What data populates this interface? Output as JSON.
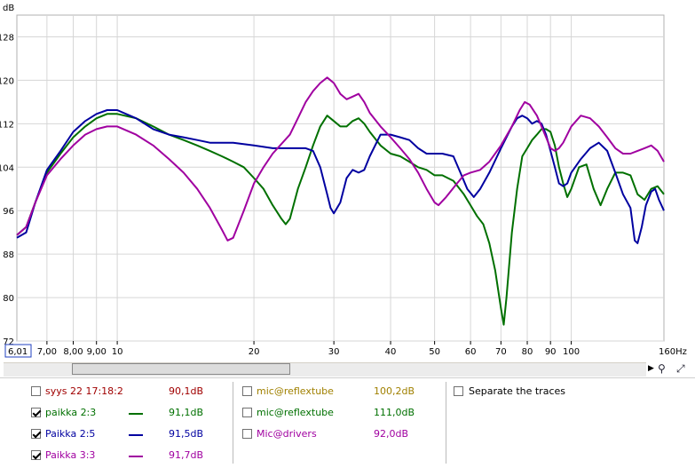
{
  "chart_data": {
    "type": "line",
    "ylabel": "dB",
    "xunit": "Hz",
    "xscale": "log",
    "xlim": [
      6.01,
      160
    ],
    "ylim": [
      72,
      132
    ],
    "xcursor_label": "6,01",
    "xticks": [
      {
        "v": 7,
        "label": "7,00"
      },
      {
        "v": 8,
        "label": "8,00"
      },
      {
        "v": 9,
        "label": "9,00"
      },
      {
        "v": 10,
        "label": "10"
      },
      {
        "v": 20,
        "label": "20"
      },
      {
        "v": 30,
        "label": "30"
      },
      {
        "v": 40,
        "label": "40"
      },
      {
        "v": 50,
        "label": "50"
      },
      {
        "v": 60,
        "label": "60"
      },
      {
        "v": 70,
        "label": "70"
      },
      {
        "v": 80,
        "label": "80"
      },
      {
        "v": 90,
        "label": "90"
      },
      {
        "v": 100,
        "label": "100"
      }
    ],
    "xend_label": "160Hz",
    "yticks": [
      72,
      80,
      88,
      96,
      104,
      112,
      120,
      128
    ],
    "grid": true,
    "series": [
      {
        "name": "paikka 2:3",
        "color": "#007000",
        "points": [
          [
            6.01,
            91.5
          ],
          [
            6.3,
            93
          ],
          [
            6.6,
            97.5
          ],
          [
            7,
            103
          ],
          [
            7.5,
            106.5
          ],
          [
            8,
            109.5
          ],
          [
            8.5,
            111.5
          ],
          [
            9,
            113
          ],
          [
            9.5,
            113.8
          ],
          [
            10,
            113.8
          ],
          [
            11,
            113
          ],
          [
            12,
            111.5
          ],
          [
            13,
            110
          ],
          [
            14,
            109
          ],
          [
            15,
            108
          ],
          [
            16,
            107
          ],
          [
            17,
            106
          ],
          [
            18,
            105
          ],
          [
            19,
            104
          ],
          [
            20,
            102
          ],
          [
            21,
            100
          ],
          [
            22,
            97
          ],
          [
            23,
            94.5
          ],
          [
            23.5,
            93.5
          ],
          [
            24,
            94.5
          ],
          [
            25,
            100
          ],
          [
            26,
            104
          ],
          [
            27,
            108
          ],
          [
            28,
            111.5
          ],
          [
            29,
            113.5
          ],
          [
            30,
            112.5
          ],
          [
            31,
            111.5
          ],
          [
            32,
            111.5
          ],
          [
            33,
            112.5
          ],
          [
            34,
            113
          ],
          [
            35,
            112
          ],
          [
            36,
            110.5
          ],
          [
            38,
            108
          ],
          [
            40,
            106.5
          ],
          [
            42,
            106
          ],
          [
            44,
            105
          ],
          [
            46,
            104
          ],
          [
            48,
            103.5
          ],
          [
            50,
            102.5
          ],
          [
            52,
            102.5
          ],
          [
            55,
            101.5
          ],
          [
            58,
            99
          ],
          [
            60,
            97
          ],
          [
            62,
            95
          ],
          [
            64,
            93.5
          ],
          [
            66,
            90
          ],
          [
            68,
            85
          ],
          [
            70,
            78
          ],
          [
            71,
            75
          ],
          [
            72,
            80
          ],
          [
            74,
            92
          ],
          [
            76,
            100
          ],
          [
            78,
            106
          ],
          [
            80,
            107.5
          ],
          [
            82,
            109
          ],
          [
            84,
            110
          ],
          [
            86,
            111
          ],
          [
            88,
            111
          ],
          [
            90,
            110.5
          ],
          [
            92,
            108
          ],
          [
            94,
            104
          ],
          [
            96,
            101
          ],
          [
            98,
            98.5
          ],
          [
            100,
            100
          ],
          [
            104,
            104
          ],
          [
            108,
            104.5
          ],
          [
            112,
            100
          ],
          [
            116,
            97
          ],
          [
            120,
            100
          ],
          [
            125,
            103
          ],
          [
            130,
            103
          ],
          [
            135,
            102.5
          ],
          [
            140,
            99
          ],
          [
            145,
            98
          ],
          [
            150,
            100
          ],
          [
            155,
            100.5
          ],
          [
            160,
            99
          ]
        ]
      },
      {
        "name": "Paikka 2:5",
        "color": "#0000a0",
        "points": [
          [
            6.01,
            91
          ],
          [
            6.3,
            92
          ],
          [
            6.6,
            97.5
          ],
          [
            7,
            103.5
          ],
          [
            7.5,
            107
          ],
          [
            8,
            110.5
          ],
          [
            8.5,
            112.5
          ],
          [
            9,
            113.8
          ],
          [
            9.5,
            114.5
          ],
          [
            10,
            114.5
          ],
          [
            11,
            113
          ],
          [
            12,
            111
          ],
          [
            13,
            110
          ],
          [
            14,
            109.5
          ],
          [
            15,
            109
          ],
          [
            16,
            108.5
          ],
          [
            18,
            108.5
          ],
          [
            20,
            108
          ],
          [
            22,
            107.5
          ],
          [
            24,
            107.5
          ],
          [
            25,
            107.5
          ],
          [
            26,
            107.5
          ],
          [
            27,
            107
          ],
          [
            28,
            104
          ],
          [
            29,
            99
          ],
          [
            29.5,
            96.5
          ],
          [
            30,
            95.5
          ],
          [
            31,
            97.5
          ],
          [
            32,
            102
          ],
          [
            33,
            103.5
          ],
          [
            34,
            103
          ],
          [
            35,
            103.5
          ],
          [
            36,
            106
          ],
          [
            38,
            110
          ],
          [
            40,
            110
          ],
          [
            42,
            109.5
          ],
          [
            44,
            109
          ],
          [
            46,
            107.5
          ],
          [
            48,
            106.5
          ],
          [
            50,
            106.5
          ],
          [
            52,
            106.5
          ],
          [
            55,
            106
          ],
          [
            57,
            103
          ],
          [
            59,
            100
          ],
          [
            61,
            98.5
          ],
          [
            63,
            100
          ],
          [
            66,
            103
          ],
          [
            70,
            107.5
          ],
          [
            74,
            111.5
          ],
          [
            76,
            113
          ],
          [
            78,
            113.5
          ],
          [
            80,
            113
          ],
          [
            82,
            112
          ],
          [
            84,
            112.5
          ],
          [
            86,
            112
          ],
          [
            88,
            110
          ],
          [
            90,
            107
          ],
          [
            92,
            104
          ],
          [
            94,
            101
          ],
          [
            96,
            100.5
          ],
          [
            98,
            101
          ],
          [
            100,
            103
          ],
          [
            105,
            105.5
          ],
          [
            110,
            107.5
          ],
          [
            115,
            108.5
          ],
          [
            120,
            107
          ],
          [
            125,
            103
          ],
          [
            130,
            99
          ],
          [
            135,
            96.5
          ],
          [
            138,
            90.5
          ],
          [
            140,
            90
          ],
          [
            143,
            93
          ],
          [
            146,
            97
          ],
          [
            150,
            99.5
          ],
          [
            153,
            100
          ],
          [
            156,
            98
          ],
          [
            160,
            96
          ]
        ]
      },
      {
        "name": "Paikka 3:3",
        "color": "#a000a0",
        "points": [
          [
            6.01,
            91.5
          ],
          [
            6.3,
            93
          ],
          [
            6.6,
            97.5
          ],
          [
            7,
            102.5
          ],
          [
            7.5,
            105.5
          ],
          [
            8,
            108
          ],
          [
            8.5,
            110
          ],
          [
            9,
            111
          ],
          [
            9.5,
            111.5
          ],
          [
            10,
            111.5
          ],
          [
            11,
            110
          ],
          [
            12,
            108
          ],
          [
            13,
            105.5
          ],
          [
            14,
            103
          ],
          [
            15,
            100
          ],
          [
            16,
            96.5
          ],
          [
            17,
            92.5
          ],
          [
            17.5,
            90.5
          ],
          [
            18,
            91
          ],
          [
            19,
            96
          ],
          [
            20,
            101
          ],
          [
            21,
            104
          ],
          [
            22,
            106.5
          ],
          [
            24,
            110
          ],
          [
            25,
            113
          ],
          [
            26,
            116
          ],
          [
            27,
            118
          ],
          [
            28,
            119.5
          ],
          [
            29,
            120.5
          ],
          [
            30,
            119.5
          ],
          [
            31,
            117.5
          ],
          [
            32,
            116.5
          ],
          [
            33,
            117
          ],
          [
            34,
            117.5
          ],
          [
            35,
            116
          ],
          [
            36,
            114
          ],
          [
            38,
            111.5
          ],
          [
            40,
            109.5
          ],
          [
            42,
            107.5
          ],
          [
            44,
            105.5
          ],
          [
            46,
            103
          ],
          [
            48,
            100
          ],
          [
            50,
            97.5
          ],
          [
            51,
            97
          ],
          [
            53,
            98.5
          ],
          [
            56,
            101
          ],
          [
            58,
            102.5
          ],
          [
            60,
            103
          ],
          [
            63,
            103.5
          ],
          [
            66,
            105
          ],
          [
            70,
            108
          ],
          [
            74,
            111.5
          ],
          [
            77,
            114.5
          ],
          [
            79,
            116
          ],
          [
            81,
            115.5
          ],
          [
            84,
            113.5
          ],
          [
            86,
            111.5
          ],
          [
            88,
            109.5
          ],
          [
            90,
            107.5
          ],
          [
            92,
            107
          ],
          [
            94,
            107.5
          ],
          [
            96,
            108.5
          ],
          [
            100,
            111.5
          ],
          [
            105,
            113.5
          ],
          [
            110,
            113
          ],
          [
            115,
            111.5
          ],
          [
            120,
            109.5
          ],
          [
            125,
            107.5
          ],
          [
            130,
            106.5
          ],
          [
            135,
            106.5
          ],
          [
            140,
            107
          ],
          [
            145,
            107.5
          ],
          [
            150,
            108
          ],
          [
            155,
            107
          ],
          [
            160,
            105
          ]
        ]
      }
    ]
  },
  "legend": {
    "col1": [
      {
        "name": "syys 22 17:18:2",
        "value": "90,1dB",
        "checked": false,
        "color": "#a00000",
        "line": false
      },
      {
        "name": "paikka 2:3",
        "value": "91,1dB",
        "checked": true,
        "color": "#007000",
        "line": true
      },
      {
        "name": "Paikka 2:5",
        "value": "91,5dB",
        "checked": true,
        "color": "#0000a0",
        "line": true
      },
      {
        "name": "Paikka 3:3",
        "value": "91,7dB",
        "checked": true,
        "color": "#a000a0",
        "line": true
      }
    ],
    "col2": [
      {
        "name": "mic@reflextube",
        "value": "100,2dB",
        "checked": false,
        "color": "#a08000"
      },
      {
        "name": "mic@reflextube",
        "value": "111,0dB",
        "checked": false,
        "color": "#007000"
      },
      {
        "name": "Mic@drivers",
        "value": "92,0dB",
        "checked": false,
        "color": "#a000a0"
      }
    ],
    "separate_label": "Separate the traces"
  }
}
